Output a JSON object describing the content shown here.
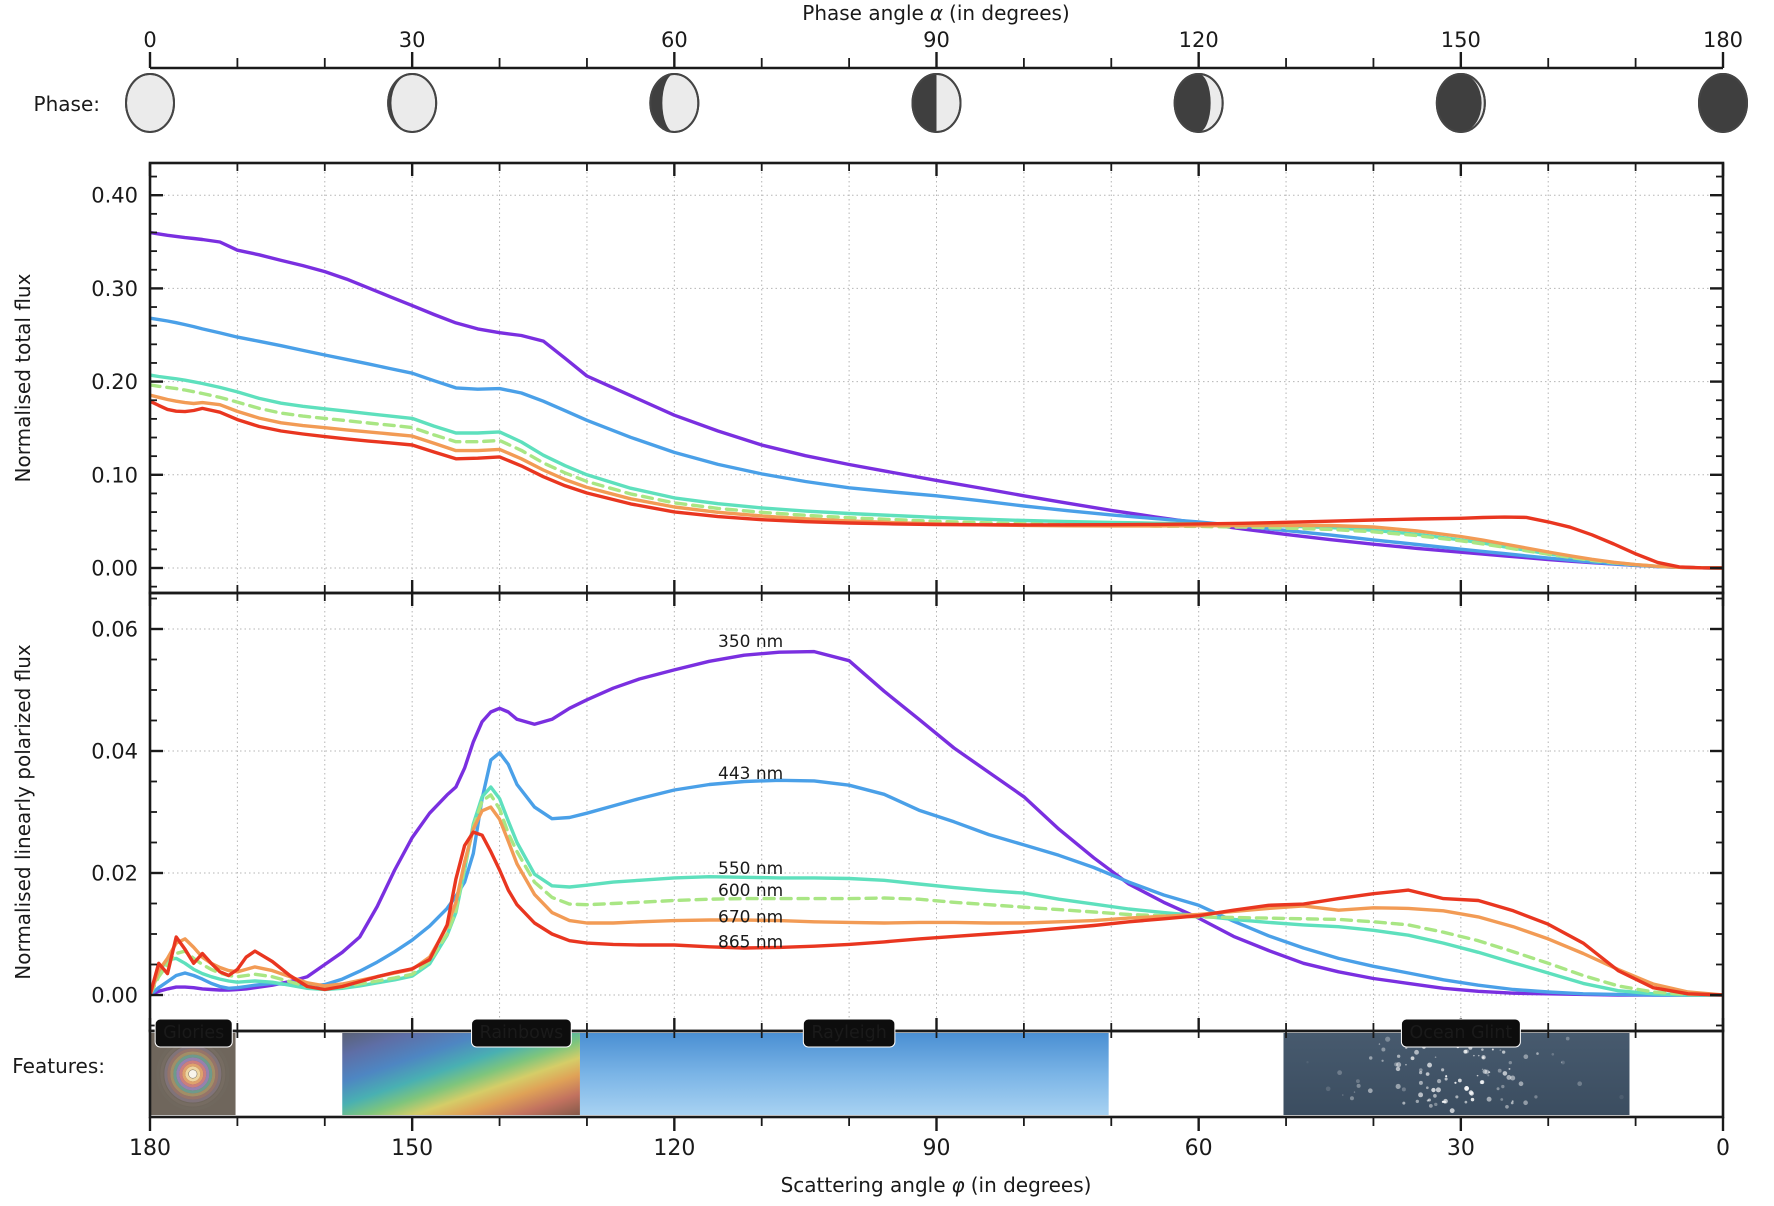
{
  "top_axis": {
    "title_pre": "Phase angle",
    "title_sym": "α",
    "title_post": "(in degrees)",
    "ticks": [
      0,
      30,
      60,
      90,
      120,
      150,
      180
    ]
  },
  "bottom_axis": {
    "title_pre": "Scattering angle",
    "title_sym": "φ",
    "title_post": "(in degrees)",
    "ticks": [
      180,
      150,
      120,
      90,
      60,
      30,
      0
    ]
  },
  "phase_row": {
    "label": "Phase:",
    "icon_alphas": [
      0,
      30,
      60,
      90,
      120,
      150,
      180
    ],
    "light_color": "#ebebeb",
    "dark_color": "#3f3f3f",
    "outline_color": "#454545"
  },
  "features": {
    "label": "Features:",
    "items": [
      {
        "name": "Glories",
        "kind": "glory",
        "scatter_from": 180,
        "scatter_to": 170.2,
        "label_scatter": 175
      },
      {
        "name": "Rainbows",
        "kind": "rainbow",
        "scatter_from": 158,
        "scatter_to": 130.8,
        "label_scatter": 137.5
      },
      {
        "name": "Rayleigh",
        "kind": "rayleigh",
        "scatter_from": 130.8,
        "scatter_to": 70.3,
        "label_scatter": 100
      },
      {
        "name": "Ocean Glint",
        "kind": "ocean",
        "scatter_from": 50.3,
        "scatter_to": 10.7,
        "label_scatter": 30
      }
    ]
  },
  "chart_data": {
    "type": "line",
    "x_axis": {
      "label": "Phase angle (degrees)",
      "range": [
        0,
        180
      ],
      "grid_step": 10
    },
    "charts": [
      {
        "id": "total",
        "ylabel": "Normalised total flux",
        "ylim": [
          -0.027,
          0.435
        ],
        "yticks": [
          0.0,
          0.1,
          0.2,
          0.3,
          0.4
        ],
        "ytick_labels": [
          "0.00",
          "0.10",
          "0.20",
          "0.30",
          "0.40"
        ],
        "grid": true,
        "x": [
          0,
          1,
          2,
          3,
          4,
          5,
          6,
          8,
          10,
          12.5,
          15,
          17.5,
          20,
          22.5,
          25,
          27.5,
          30,
          32.5,
          35,
          37.5,
          40,
          42.5,
          45,
          47.5,
          50,
          55,
          60,
          65,
          70,
          75,
          80,
          85,
          90,
          95,
          100,
          105,
          110,
          115,
          120,
          125,
          130,
          135,
          140,
          145,
          150,
          152.5,
          155,
          157.5,
          160,
          162.5,
          165,
          167.5,
          170,
          172.5,
          175,
          177.5,
          180
        ]
      },
      {
        "id": "polarized",
        "ylabel": "Normalised linearly polarized flux",
        "ylim": [
          -0.006,
          0.0659
        ],
        "yticks": [
          0.0,
          0.02,
          0.04,
          0.06
        ],
        "ytick_labels": [
          "0.00",
          "0.02",
          "0.04",
          "0.06"
        ],
        "grid": true,
        "label_anchor_phase": 65,
        "x": [
          0,
          1,
          2,
          3,
          4,
          5,
          6,
          7,
          8,
          9,
          10,
          11,
          12,
          14,
          16,
          18,
          20,
          22,
          24,
          26,
          28,
          30,
          32,
          34,
          35,
          36,
          37,
          38,
          39,
          40,
          41,
          42,
          44,
          46,
          48,
          50,
          53,
          56,
          60,
          64,
          68,
          72,
          76,
          80,
          84,
          88,
          92,
          96,
          100,
          104,
          108,
          112,
          116,
          120,
          124,
          128,
          132,
          136,
          140,
          144,
          148,
          152,
          156,
          160,
          164,
          168,
          172,
          176,
          180
        ]
      }
    ],
    "series": [
      {
        "name": "350 nm",
        "color": "#7a2fe0",
        "dashed": false,
        "label_y_pol": 0.058,
        "total": [
          0.36,
          0.3585,
          0.357,
          0.3558,
          0.3545,
          0.3535,
          0.3525,
          0.3498,
          0.341,
          0.336,
          0.33,
          0.3245,
          0.318,
          0.31,
          0.3005,
          0.291,
          0.2815,
          0.272,
          0.263,
          0.2565,
          0.2525,
          0.2495,
          0.2435,
          0.225,
          0.206,
          0.185,
          0.164,
          0.147,
          0.132,
          0.1205,
          0.111,
          0.1025,
          0.094,
          0.0858,
          0.0775,
          0.0695,
          0.0618,
          0.0548,
          0.0483,
          0.042,
          0.036,
          0.0305,
          0.0255,
          0.021,
          0.017,
          0.015,
          0.013,
          0.011,
          0.009,
          0.0073,
          0.0057,
          0.0042,
          0.0028,
          0.0016,
          0.0007,
          0.0002,
          0
        ],
        "pol": [
          0,
          0.0006,
          0.001,
          0.0013,
          0.0013,
          0.0012,
          0.001,
          0.0009,
          0.0008,
          0.0008,
          0.0009,
          0.001,
          0.0012,
          0.0016,
          0.0022,
          0.003,
          0.005,
          0.007,
          0.0095,
          0.0145,
          0.0205,
          0.0258,
          0.0298,
          0.0328,
          0.0341,
          0.0372,
          0.0415,
          0.0448,
          0.0464,
          0.047,
          0.0464,
          0.0452,
          0.0444,
          0.0452,
          0.047,
          0.0484,
          0.0503,
          0.0518,
          0.0533,
          0.0547,
          0.0557,
          0.0562,
          0.0563,
          0.0548,
          0.0498,
          0.0452,
          0.0405,
          0.0365,
          0.0325,
          0.0272,
          0.0225,
          0.0182,
          0.0152,
          0.0126,
          0.0096,
          0.0073,
          0.0052,
          0.0038,
          0.0027,
          0.0019,
          0.0011,
          0.0006,
          0.0003,
          0.0002,
          0.0001,
          0,
          0,
          0,
          0
        ]
      },
      {
        "name": "443 nm",
        "color": "#4aa0e8",
        "dashed": false,
        "label_y_pol": 0.0364,
        "total": [
          0.268,
          0.2665,
          0.265,
          0.2632,
          0.2612,
          0.259,
          0.2565,
          0.2522,
          0.2478,
          0.2432,
          0.2385,
          0.2335,
          0.2285,
          0.2238,
          0.219,
          0.214,
          0.209,
          0.201,
          0.1932,
          0.1918,
          0.1925,
          0.1878,
          0.179,
          0.1688,
          0.1585,
          0.1402,
          0.124,
          0.1112,
          0.101,
          0.0928,
          0.086,
          0.0815,
          0.0775,
          0.0722,
          0.0665,
          0.0615,
          0.057,
          0.053,
          0.0495,
          0.045,
          0.0402,
          0.0355,
          0.0302,
          0.0252,
          0.0202,
          0.0178,
          0.0154,
          0.013,
          0.0106,
          0.0084,
          0.0063,
          0.0045,
          0.0029,
          0.0016,
          0.0007,
          0.0002,
          0
        ],
        "pol": [
          0,
          0.0012,
          0.0022,
          0.0032,
          0.0036,
          0.0032,
          0.0026,
          0.0019,
          0.0014,
          0.0011,
          0.0012,
          0.0014,
          0.0016,
          0.0019,
          0.0017,
          0.0014,
          0.0017,
          0.0026,
          0.0039,
          0.0054,
          0.0071,
          0.009,
          0.0113,
          0.0142,
          0.0162,
          0.0185,
          0.0232,
          0.0322,
          0.0385,
          0.0397,
          0.0378,
          0.0345,
          0.0308,
          0.0289,
          0.0291,
          0.0298,
          0.031,
          0.0322,
          0.0336,
          0.0345,
          0.035,
          0.0352,
          0.0351,
          0.0344,
          0.0329,
          0.0303,
          0.0284,
          0.0263,
          0.0246,
          0.0229,
          0.0209,
          0.0185,
          0.0164,
          0.0147,
          0.0121,
          0.0097,
          0.0077,
          0.006,
          0.0047,
          0.0036,
          0.0025,
          0.0016,
          0.0009,
          0.0005,
          0.0002,
          0.0001,
          0,
          0,
          0
        ]
      },
      {
        "name": "550 nm",
        "color": "#5ee0bd",
        "dashed": false,
        "label_y_pol": 0.0208,
        "total": [
          0.207,
          0.2055,
          0.2042,
          0.203,
          0.2015,
          0.1998,
          0.198,
          0.1938,
          0.189,
          0.182,
          0.1768,
          0.1735,
          0.1708,
          0.1682,
          0.1656,
          0.163,
          0.1605,
          0.1522,
          0.1448,
          0.1448,
          0.146,
          0.1352,
          0.121,
          0.1098,
          0.1,
          0.0856,
          0.0752,
          0.069,
          0.0645,
          0.061,
          0.0585,
          0.0563,
          0.0543,
          0.0525,
          0.051,
          0.0498,
          0.0489,
          0.0481,
          0.0474,
          0.0464,
          0.045,
          0.0434,
          0.0405,
          0.0362,
          0.0302,
          0.0268,
          0.0228,
          0.019,
          0.0152,
          0.0117,
          0.0085,
          0.0058,
          0.0035,
          0.0018,
          0.0007,
          0.0002,
          0
        ],
        "pol": [
          0,
          0.0038,
          0.0058,
          0.006,
          0.0052,
          0.0042,
          0.0035,
          0.003,
          0.0026,
          0.0023,
          0.0021,
          0.0022,
          0.0023,
          0.0021,
          0.0016,
          0.0011,
          0.0009,
          0.0011,
          0.0015,
          0.002,
          0.0025,
          0.0031,
          0.0051,
          0.0098,
          0.0135,
          0.0205,
          0.028,
          0.0325,
          0.0341,
          0.0322,
          0.0285,
          0.025,
          0.0198,
          0.0179,
          0.0177,
          0.018,
          0.0185,
          0.0188,
          0.0192,
          0.0194,
          0.0193,
          0.0192,
          0.0192,
          0.0191,
          0.0188,
          0.0182,
          0.0176,
          0.0171,
          0.0167,
          0.0157,
          0.0149,
          0.0141,
          0.0135,
          0.013,
          0.0124,
          0.0119,
          0.0115,
          0.0112,
          0.0106,
          0.0098,
          0.0085,
          0.007,
          0.0053,
          0.0036,
          0.0019,
          0.0007,
          0.0002,
          0,
          0
        ]
      },
      {
        "name": "600 nm",
        "color": "#a9e684",
        "dashed": true,
        "label_y_pol": 0.0172,
        "total": [
          0.1965,
          0.195,
          0.1938,
          0.1925,
          0.191,
          0.1892,
          0.1872,
          0.183,
          0.178,
          0.1712,
          0.1662,
          0.163,
          0.1605,
          0.158,
          0.1556,
          0.1532,
          0.1508,
          0.1428,
          0.1355,
          0.1355,
          0.1368,
          0.1262,
          0.1128,
          0.102,
          0.0928,
          0.0795,
          0.0698,
          0.064,
          0.0598,
          0.0565,
          0.054,
          0.0519,
          0.0501,
          0.0486,
          0.0474,
          0.0464,
          0.0457,
          0.0451,
          0.0446,
          0.0439,
          0.0428,
          0.0414,
          0.0388,
          0.0348,
          0.0292,
          0.0259,
          0.0222,
          0.0185,
          0.0148,
          0.0114,
          0.0082,
          0.0056,
          0.0034,
          0.0017,
          0.0007,
          0.0002,
          0
        ],
        "pol": [
          0,
          0.003,
          0.005,
          0.0068,
          0.0072,
          0.006,
          0.005,
          0.0042,
          0.0036,
          0.0032,
          0.003,
          0.0032,
          0.0034,
          0.003,
          0.0022,
          0.0014,
          0.001,
          0.0013,
          0.0018,
          0.0023,
          0.0028,
          0.0034,
          0.0055,
          0.01,
          0.0138,
          0.021,
          0.0275,
          0.0318,
          0.0328,
          0.0305,
          0.0265,
          0.0235,
          0.0185,
          0.016,
          0.0149,
          0.0148,
          0.015,
          0.0152,
          0.0155,
          0.0157,
          0.0158,
          0.0158,
          0.0158,
          0.0158,
          0.0159,
          0.0157,
          0.0152,
          0.0148,
          0.0144,
          0.014,
          0.0136,
          0.0132,
          0.013,
          0.0128,
          0.0127,
          0.0126,
          0.0125,
          0.0124,
          0.012,
          0.0115,
          0.0103,
          0.0089,
          0.0071,
          0.0052,
          0.0032,
          0.0015,
          0.0005,
          0.0001,
          0
        ]
      },
      {
        "name": "670 nm",
        "color": "#f29b55",
        "dashed": false,
        "label_y_pol": 0.0129,
        "total": [
          0.1855,
          0.1832,
          0.1808,
          0.179,
          0.1775,
          0.1765,
          0.1775,
          0.1752,
          0.168,
          0.1608,
          0.1558,
          0.1528,
          0.1505,
          0.1482,
          0.146,
          0.1438,
          0.1415,
          0.1338,
          0.126,
          0.126,
          0.1272,
          0.1172,
          0.1052,
          0.0948,
          0.0865,
          0.0742,
          0.0655,
          0.0598,
          0.0558,
          0.0528,
          0.0505,
          0.0487,
          0.0473,
          0.0463,
          0.0457,
          0.0453,
          0.0452,
          0.0452,
          0.0454,
          0.0456,
          0.0457,
          0.0456,
          0.044,
          0.0398,
          0.0338,
          0.0299,
          0.0258,
          0.0215,
          0.0172,
          0.0131,
          0.0093,
          0.0061,
          0.0036,
          0.0018,
          0.0007,
          0.0002,
          0
        ],
        "pol": [
          0,
          0.004,
          0.006,
          0.0085,
          0.0092,
          0.0078,
          0.0062,
          0.0052,
          0.0045,
          0.004,
          0.0038,
          0.0042,
          0.0046,
          0.004,
          0.003,
          0.002,
          0.0015,
          0.0018,
          0.0024,
          0.003,
          0.0036,
          0.0042,
          0.0062,
          0.0112,
          0.0152,
          0.0218,
          0.0272,
          0.0302,
          0.0308,
          0.0288,
          0.0252,
          0.0215,
          0.0165,
          0.0135,
          0.0122,
          0.0118,
          0.0118,
          0.012,
          0.0122,
          0.0123,
          0.0123,
          0.0122,
          0.012,
          0.0119,
          0.0118,
          0.0119,
          0.0119,
          0.0118,
          0.0118,
          0.012,
          0.0122,
          0.0126,
          0.0129,
          0.0132,
          0.0137,
          0.0142,
          0.0146,
          0.0139,
          0.0143,
          0.0142,
          0.0138,
          0.0128,
          0.0112,
          0.0092,
          0.0068,
          0.0042,
          0.0018,
          0.0005,
          0
        ]
      },
      {
        "name": "865 nm",
        "color": "#e93620",
        "dashed": false,
        "label_y_pol": 0.0088,
        "total": [
          0.179,
          0.1745,
          0.1702,
          0.1682,
          0.1678,
          0.169,
          0.1712,
          0.1672,
          0.1592,
          0.1518,
          0.147,
          0.1438,
          0.141,
          0.1385,
          0.1362,
          0.1342,
          0.132,
          0.1245,
          0.1172,
          0.1178,
          0.1192,
          0.1095,
          0.098,
          0.0882,
          0.0805,
          0.0688,
          0.0602,
          0.0552,
          0.0518,
          0.0497,
          0.0483,
          0.0473,
          0.0467,
          0.0463,
          0.0462,
          0.0463,
          0.0465,
          0.0468,
          0.0473,
          0.048,
          0.049,
          0.0502,
          0.0515,
          0.0526,
          0.0533,
          0.0542,
          0.0546,
          0.0543,
          0.0495,
          0.0438,
          0.0356,
          0.0258,
          0.0152,
          0.006,
          0.0012,
          0.0002,
          0
        ],
        "pol": [
          0,
          0.0052,
          0.0035,
          0.0095,
          0.0075,
          0.0052,
          0.0068,
          0.0052,
          0.0038,
          0.0032,
          0.0042,
          0.0062,
          0.0072,
          0.0055,
          0.0032,
          0.0014,
          0.0009,
          0.0014,
          0.0022,
          0.003,
          0.0037,
          0.0043,
          0.0058,
          0.0115,
          0.019,
          0.0245,
          0.0267,
          0.0262,
          0.0235,
          0.0205,
          0.0172,
          0.0148,
          0.0118,
          0.01,
          0.0089,
          0.0085,
          0.0083,
          0.0082,
          0.0082,
          0.0079,
          0.0077,
          0.0078,
          0.008,
          0.0083,
          0.0087,
          0.0092,
          0.0096,
          0.01,
          0.0104,
          0.0109,
          0.0114,
          0.012,
          0.0125,
          0.013,
          0.0139,
          0.0147,
          0.0149,
          0.0158,
          0.0166,
          0.0172,
          0.0158,
          0.0155,
          0.0138,
          0.0116,
          0.0085,
          0.004,
          0.0012,
          0.0002,
          0
        ]
      }
    ]
  },
  "style": {
    "grid_color": "#b5b5b5",
    "spine_color": "#1a1a1a",
    "feature_box_bg": "#0d0d0d",
    "feature_box_text": "#ffffff"
  }
}
